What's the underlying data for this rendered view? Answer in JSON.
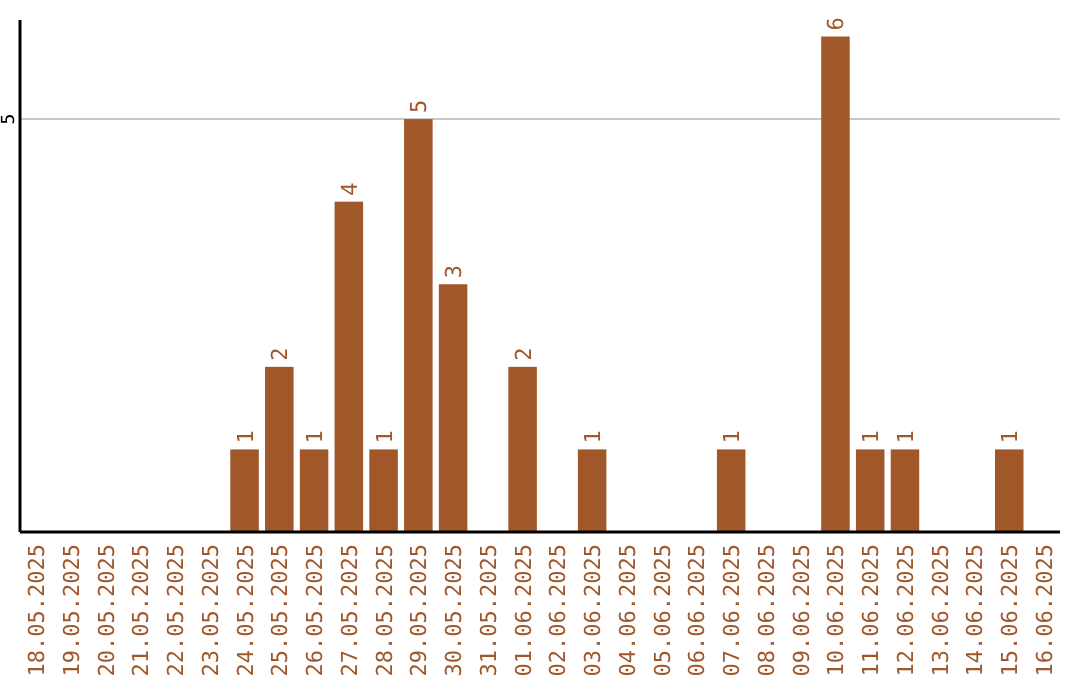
{
  "chart_data": {
    "type": "bar",
    "categories": [
      "18.05.2025",
      "19.05.2025",
      "20.05.2025",
      "21.05.2025",
      "22.05.2025",
      "23.05.2025",
      "24.05.2025",
      "25.05.2025",
      "26.05.2025",
      "27.05.2025",
      "28.05.2025",
      "29.05.2025",
      "30.05.2025",
      "31.05.2025",
      "01.06.2025",
      "02.06.2025",
      "03.06.2025",
      "04.06.2025",
      "05.06.2025",
      "06.06.2025",
      "07.06.2025",
      "08.06.2025",
      "09.06.2025",
      "10.06.2025",
      "11.06.2025",
      "12.06.2025",
      "13.06.2025",
      "14.06.2025",
      "15.06.2025",
      "16.06.2025"
    ],
    "values": [
      0,
      0,
      0,
      0,
      0,
      0,
      1,
      2,
      1,
      4,
      1,
      5,
      3,
      0,
      2,
      0,
      1,
      0,
      0,
      0,
      1,
      0,
      0,
      6,
      1,
      1,
      0,
      0,
      1,
      0
    ],
    "value_labels": [
      null,
      null,
      null,
      null,
      null,
      null,
      "1",
      "2",
      "1",
      "4",
      "1",
      "5",
      "3",
      null,
      "2",
      null,
      "1",
      null,
      null,
      null,
      "1",
      null,
      null,
      "6",
      "1",
      "1",
      null,
      null,
      "1",
      null
    ],
    "color": "#a0572a",
    "ylim": [
      0,
      6.2
    ],
    "yticks": [
      5
    ],
    "grid": "y"
  }
}
